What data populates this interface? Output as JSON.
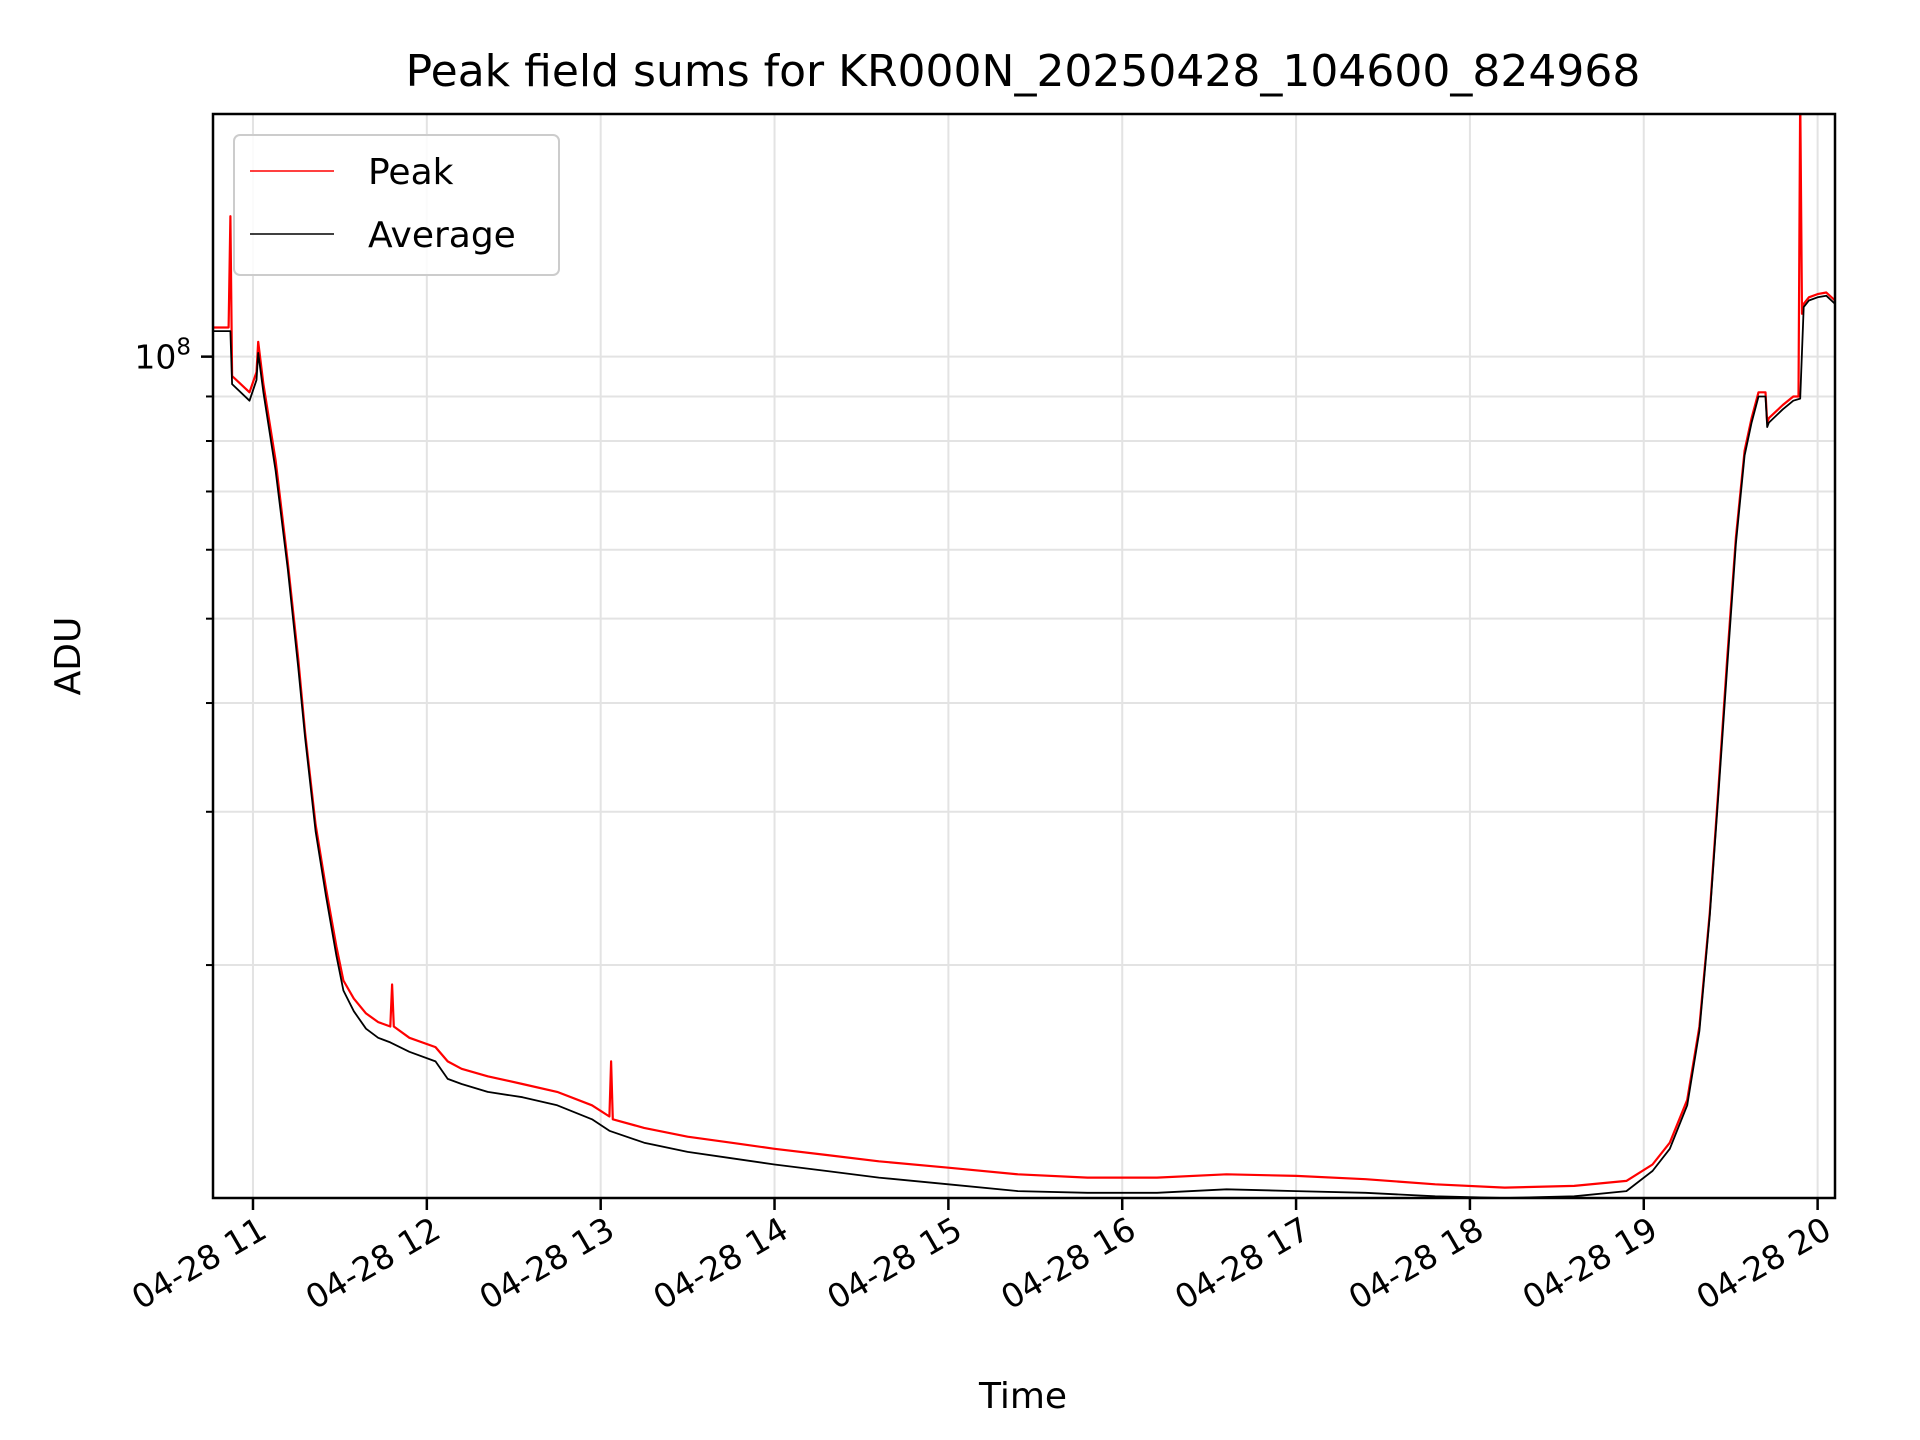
{
  "chart_data": {
    "type": "line",
    "title": "Peak field sums for KR000N_20250428_104600_824968",
    "xlabel": "Time",
    "ylabel": "ADU",
    "yscale": "log",
    "ylim": [
      10800000,
      190000000
    ],
    "xlim_hours": [
      10.77,
      20.1
    ],
    "x_ticks": [
      {
        "value": 11,
        "label": "04-28 11"
      },
      {
        "value": 12,
        "label": "04-28 12"
      },
      {
        "value": 13,
        "label": "04-28 13"
      },
      {
        "value": 14,
        "label": "04-28 14"
      },
      {
        "value": 15,
        "label": "04-28 15"
      },
      {
        "value": 16,
        "label": "04-28 16"
      },
      {
        "value": 17,
        "label": "04-28 17"
      },
      {
        "value": 18,
        "label": "04-28 18"
      },
      {
        "value": 19,
        "label": "04-28 19"
      },
      {
        "value": 20,
        "label": "04-28 20"
      }
    ],
    "y_major_tick": {
      "value": 100000000,
      "label_base": "10",
      "label_exp": "8"
    },
    "y_minor_ticks": [
      20000000,
      30000000,
      40000000,
      50000000,
      60000000,
      70000000,
      80000000,
      90000000
    ],
    "legend_position": "upper-left",
    "series": [
      {
        "name": "Peak",
        "color": "#ff0000",
        "x": [
          10.77,
          10.86,
          10.87,
          10.88,
          10.98,
          11.02,
          11.03,
          11.06,
          11.13,
          11.2,
          11.26,
          11.3,
          11.36,
          11.42,
          11.48,
          11.52,
          11.58,
          11.65,
          11.72,
          11.79,
          11.8,
          11.81,
          11.9,
          12.05,
          12.12,
          12.2,
          12.35,
          12.55,
          12.75,
          12.95,
          13.05,
          13.06,
          13.07,
          13.25,
          13.5,
          13.75,
          14.0,
          14.3,
          14.6,
          15.0,
          15.4,
          15.8,
          16.2,
          16.6,
          17.0,
          17.4,
          17.8,
          18.2,
          18.6,
          18.9,
          19.05,
          19.15,
          19.25,
          19.32,
          19.38,
          19.43,
          19.48,
          19.53,
          19.58,
          19.62,
          19.66,
          19.7,
          19.71,
          19.72,
          19.8,
          19.86,
          19.89,
          19.9,
          19.91,
          19.92,
          19.95,
          20.0,
          20.05,
          20.1
        ],
        "y": [
          108000000,
          108000000,
          145000000,
          95000000,
          91000000,
          96000000,
          104000000,
          93000000,
          76000000,
          58000000,
          45000000,
          37000000,
          29000000,
          24500000,
          21000000,
          19200000,
          18300000,
          17600000,
          17200000,
          17000000,
          19000000,
          17000000,
          16500000,
          16100000,
          15500000,
          15200000,
          14900000,
          14600000,
          14300000,
          13800000,
          13400000,
          15500000,
          13300000,
          13000000,
          12700000,
          12500000,
          12300000,
          12100000,
          11900000,
          11700000,
          11500000,
          11400000,
          11400000,
          11500000,
          11450000,
          11350000,
          11200000,
          11100000,
          11150000,
          11300000,
          11800000,
          12500000,
          14000000,
          17000000,
          23000000,
          32000000,
          45000000,
          62000000,
          78000000,
          85000000,
          91000000,
          91000000,
          84000000,
          85000000,
          88000000,
          90000000,
          90000000,
          200000000,
          112000000,
          115000000,
          117000000,
          118000000,
          118500000,
          116000000
        ]
      },
      {
        "name": "Average",
        "color": "#000000",
        "x": [
          10.77,
          10.86,
          10.87,
          10.88,
          10.98,
          11.02,
          11.03,
          11.06,
          11.13,
          11.2,
          11.26,
          11.3,
          11.36,
          11.42,
          11.48,
          11.52,
          11.58,
          11.65,
          11.72,
          11.79,
          11.9,
          12.05,
          12.12,
          12.2,
          12.35,
          12.55,
          12.75,
          12.95,
          13.05,
          13.25,
          13.5,
          13.75,
          14.0,
          14.3,
          14.6,
          15.0,
          15.4,
          15.8,
          16.2,
          16.6,
          17.0,
          17.4,
          17.8,
          18.2,
          18.6,
          18.9,
          19.05,
          19.15,
          19.25,
          19.32,
          19.38,
          19.43,
          19.48,
          19.53,
          19.58,
          19.62,
          19.66,
          19.7,
          19.71,
          19.72,
          19.8,
          19.86,
          19.9,
          19.92,
          19.95,
          20.0,
          20.05,
          20.1
        ],
        "y": [
          107000000,
          107000000,
          107000000,
          93000000,
          89000000,
          94000000,
          101000000,
          91000000,
          74000000,
          57000000,
          44000000,
          36500000,
          28500000,
          24000000,
          20500000,
          18700000,
          17700000,
          16900000,
          16500000,
          16300000,
          15900000,
          15500000,
          14800000,
          14600000,
          14300000,
          14100000,
          13800000,
          13300000,
          12900000,
          12500000,
          12200000,
          12000000,
          11800000,
          11600000,
          11400000,
          11200000,
          11000000,
          10950000,
          10950000,
          11050000,
          11000000,
          10950000,
          10850000,
          10800000,
          10850000,
          11000000,
          11600000,
          12300000,
          13800000,
          16800000,
          22800000,
          31500000,
          44000000,
          61000000,
          77000000,
          84000000,
          90000000,
          90000000,
          83000000,
          84000000,
          87000000,
          89000000,
          89500000,
          114000000,
          116000000,
          117000000,
          117500000,
          115000000
        ]
      }
    ]
  }
}
